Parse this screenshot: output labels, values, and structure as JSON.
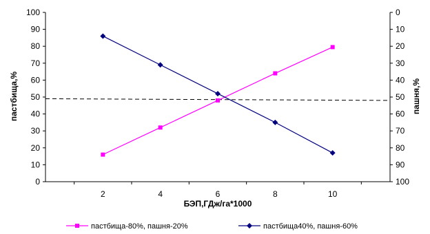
{
  "chart_data": {
    "type": "line",
    "x": [
      2,
      4,
      6,
      8,
      10
    ],
    "xlim": [
      0,
      12
    ],
    "xticks": [
      2,
      4,
      6,
      8,
      10
    ],
    "xlabel": "БЭП,ГДж/га*1000",
    "ylabel": "пастбища,%",
    "ylim": [
      0,
      100
    ],
    "yticks": [
      0,
      10,
      20,
      30,
      40,
      50,
      60,
      70,
      80,
      90,
      100
    ],
    "y2label": "пашня,%",
    "y2lim": [
      0,
      100
    ],
    "y2ticks": [
      0,
      10,
      20,
      30,
      40,
      50,
      60,
      70,
      80,
      90,
      100
    ],
    "y2_inverted": true,
    "grid": false,
    "legend_position": "bottom",
    "series": [
      {
        "name": "пастбища-80%, пашня-20%",
        "axis": "left",
        "color": "#ff00ff",
        "marker": "square",
        "values": [
          16,
          32,
          48,
          64,
          79.5
        ]
      },
      {
        "name": "пастбища40%, пашня-60%",
        "axis": "right",
        "color": "#00007f",
        "marker": "diamond",
        "values": [
          14,
          31,
          48,
          65,
          83
        ]
      }
    ],
    "reference_line": {
      "style": "dashed",
      "color": "#000000",
      "y_start": 49,
      "y_end": 48
    }
  }
}
